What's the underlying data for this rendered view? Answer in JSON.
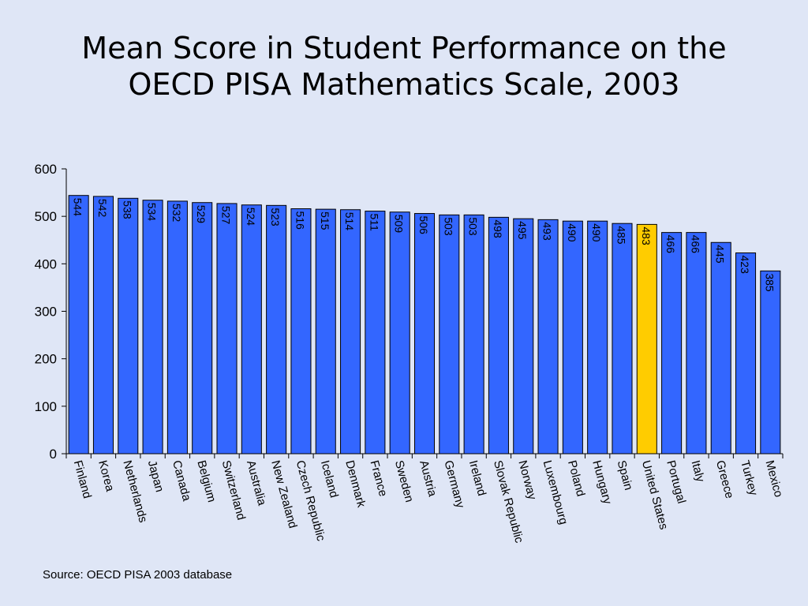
{
  "title_lines": [
    "Mean Score in Student Performance on the",
    "OECD PISA Mathematics Scale, 2003"
  ],
  "source": "Source:  OECD PISA 2003 database",
  "colors": {
    "bar": "#3366ff",
    "highlight": "#ffcc00",
    "background": "#dfe6f6"
  },
  "chart_data": {
    "type": "bar",
    "title": "Mean Score in Student Performance on the OECD PISA Mathematics Scale, 2003",
    "categories": [
      "Finland",
      "Korea",
      "Netherlands",
      "Japan",
      "Canada",
      "Belgium",
      "Switzerland",
      "Australia",
      "New Zealand",
      "Czech Republic",
      "Iceland",
      "Denmark",
      "France",
      "Sweden",
      "Austria",
      "Germany",
      "Ireland",
      "Slovak Republic",
      "Norway",
      "Luxembourg",
      "Poland",
      "Hungary",
      "Spain",
      "United States",
      "Portugal",
      "Italy",
      "Greece",
      "Turkey",
      "Mexico"
    ],
    "values": [
      544,
      542,
      538,
      534,
      532,
      529,
      527,
      524,
      523,
      516,
      515,
      514,
      511,
      509,
      506,
      503,
      503,
      498,
      495,
      493,
      490,
      490,
      485,
      483,
      466,
      466,
      445,
      423,
      385
    ],
    "highlight": "United States",
    "ylim": [
      0,
      600
    ],
    "yticks": [
      0,
      100,
      200,
      300,
      400,
      500,
      600
    ],
    "xlabel": "",
    "ylabel": "",
    "grid": false,
    "data_labels": true
  }
}
